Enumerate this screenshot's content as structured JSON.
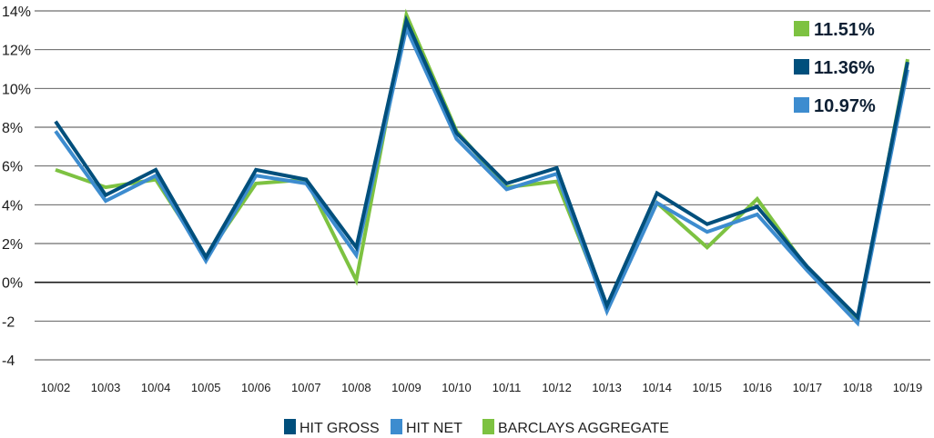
{
  "chart_data": {
    "type": "line",
    "categories": [
      "10/02",
      "10/03",
      "10/04",
      "10/05",
      "10/06",
      "10/07",
      "10/08",
      "10/09",
      "10/10",
      "10/11",
      "10/12",
      "10/13",
      "10/14",
      "10/15",
      "10/16",
      "10/17",
      "10/18",
      "10/19"
    ],
    "y_ticks": [
      "14%",
      "12%",
      "10%",
      "8%",
      "6%",
      "4%",
      "2%",
      "0%",
      "-2",
      "-4"
    ],
    "ylim": [
      -4,
      14
    ],
    "grid": true,
    "series": [
      {
        "name": "BARCLAYS AGGREGATE",
        "color": "#7dc241",
        "values": [
          5.8,
          4.9,
          5.3,
          1.3,
          5.1,
          5.3,
          0.1,
          13.8,
          7.8,
          4.9,
          5.2,
          -1.3,
          4.1,
          1.8,
          4.3,
          0.7,
          -2.0,
          11.51
        ]
      },
      {
        "name": "HIT NET",
        "color": "#3d8ccf",
        "values": [
          7.8,
          4.2,
          5.5,
          1.1,
          5.5,
          5.1,
          1.4,
          13.1,
          7.4,
          4.8,
          5.6,
          -1.5,
          4.1,
          2.6,
          3.5,
          0.6,
          -2.1,
          10.97
        ]
      },
      {
        "name": "HIT GROSS",
        "color": "#004f7c",
        "values": [
          8.3,
          4.5,
          5.8,
          1.3,
          5.8,
          5.3,
          1.8,
          13.5,
          7.7,
          5.1,
          5.9,
          -1.2,
          4.6,
          3.0,
          3.9,
          0.8,
          -1.8,
          11.36
        ]
      }
    ],
    "end_labels": [
      {
        "text": "11.51%",
        "color": "#7dc241"
      },
      {
        "text": "11.36%",
        "color": "#004f7c"
      },
      {
        "text": "10.97%",
        "color": "#3d8ccf"
      }
    ],
    "legend": [
      {
        "label": "HIT GROSS",
        "color": "#004f7c"
      },
      {
        "label": "HIT NET",
        "color": "#3d8ccf"
      },
      {
        "label": "BARCLAYS AGGREGATE",
        "color": "#7dc241"
      }
    ],
    "legend_position": "bottom-center"
  }
}
